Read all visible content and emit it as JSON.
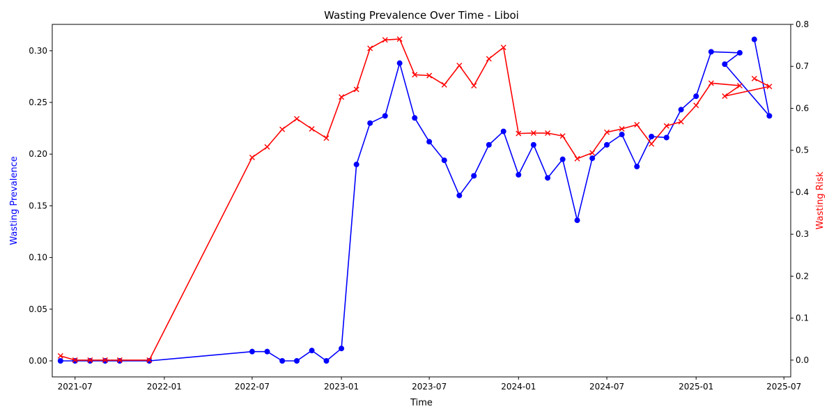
{
  "chart_data": {
    "type": "line",
    "title": "Wasting Prevalence Over Time - Liboi",
    "xlabel": "Time",
    "x_ticks": [
      "2021-07",
      "2022-01",
      "2022-07",
      "2023-01",
      "2023-07",
      "2024-01",
      "2024-07",
      "2025-01",
      "2025-07"
    ],
    "x_range": [
      "2021-05-15",
      "2025-07-15"
    ],
    "left_axis": {
      "label": "Wasting Prevalence",
      "color": "#0000ff",
      "range": [
        -0.0155,
        0.3255
      ],
      "ticks": [
        "0.00",
        "0.05",
        "0.10",
        "0.15",
        "0.20",
        "0.25",
        "0.30"
      ]
    },
    "right_axis": {
      "label": "Wasting Risk",
      "color": "#ff0000",
      "range": [
        -0.04,
        0.8
      ],
      "ticks": [
        "0.0",
        "0.1",
        "0.2",
        "0.3",
        "0.4",
        "0.5",
        "0.6",
        "0.7",
        "0.8"
      ]
    },
    "grid": false,
    "series": [
      {
        "axis": "left",
        "color": "#0000ff",
        "marker": "circle",
        "points": [
          [
            "2021-06-01",
            0.0
          ],
          [
            "2021-07-01",
            0.0
          ],
          [
            "2021-08-01",
            0.0
          ],
          [
            "2021-09-01",
            0.0
          ],
          [
            "2021-10-01",
            0.0
          ],
          [
            "2021-12-01",
            0.0
          ],
          [
            "2022-07-01",
            0.009
          ],
          [
            "2022-08-01",
            0.009
          ],
          [
            "2022-09-01",
            0.0
          ],
          [
            "2022-10-01",
            0.0
          ],
          [
            "2022-11-01",
            0.01
          ],
          [
            "2022-12-01",
            0.0
          ],
          [
            "2023-01-01",
            0.012
          ],
          [
            "2023-02-01",
            0.19
          ],
          [
            "2023-03-01",
            0.23
          ],
          [
            "2023-04-01",
            0.237
          ],
          [
            "2023-05-01",
            0.288
          ],
          [
            "2023-06-01",
            0.235
          ],
          [
            "2023-07-01",
            0.212
          ],
          [
            "2023-08-01",
            0.194
          ],
          [
            "2023-09-01",
            0.16
          ],
          [
            "2023-10-01",
            0.179
          ],
          [
            "2023-11-01",
            0.209
          ],
          [
            "2023-12-01",
            0.222
          ],
          [
            "2024-01-01",
            0.18
          ],
          [
            "2024-02-01",
            0.209
          ],
          [
            "2024-03-01",
            0.177
          ],
          [
            "2024-04-01",
            0.195
          ],
          [
            "2024-05-01",
            0.136
          ],
          [
            "2024-06-01",
            0.196
          ],
          [
            "2024-07-01",
            0.209
          ],
          [
            "2024-08-01",
            0.219
          ],
          [
            "2024-09-01",
            0.188
          ],
          [
            "2024-10-01",
            0.217
          ],
          [
            "2024-11-01",
            0.216
          ],
          [
            "2024-12-01",
            0.243
          ],
          [
            "2025-01-01",
            0.256
          ],
          [
            "2025-02-01",
            0.299
          ],
          [
            "2025-04-01",
            0.298
          ],
          [
            "2025-03-01",
            0.287
          ],
          [
            "2025-06-01",
            0.237
          ],
          [
            "2025-05-01",
            0.311
          ]
        ]
      },
      {
        "axis": "right",
        "color": "#ff0000",
        "marker": "x",
        "points": [
          [
            "2021-06-01",
            0.01
          ],
          [
            "2021-07-01",
            0.0
          ],
          [
            "2021-08-01",
            0.0
          ],
          [
            "2021-09-01",
            0.0
          ],
          [
            "2021-10-01",
            0.0
          ],
          [
            "2021-12-01",
            0.0
          ],
          [
            "2022-07-01",
            0.483
          ],
          [
            "2022-08-01",
            0.508
          ],
          [
            "2022-09-01",
            0.55
          ],
          [
            "2022-10-01",
            0.575
          ],
          [
            "2022-11-01",
            0.551
          ],
          [
            "2022-12-01",
            0.529
          ],
          [
            "2023-01-01",
            0.627
          ],
          [
            "2023-02-01",
            0.645
          ],
          [
            "2023-03-01",
            0.743
          ],
          [
            "2023-04-01",
            0.763
          ],
          [
            "2023-05-01",
            0.765
          ],
          [
            "2023-06-01",
            0.68
          ],
          [
            "2023-07-01",
            0.678
          ],
          [
            "2023-08-01",
            0.656
          ],
          [
            "2023-09-01",
            0.702
          ],
          [
            "2023-10-01",
            0.654
          ],
          [
            "2023-11-01",
            0.718
          ],
          [
            "2023-12-01",
            0.745
          ],
          [
            "2024-01-01",
            0.54
          ],
          [
            "2024-02-01",
            0.541
          ],
          [
            "2024-03-01",
            0.541
          ],
          [
            "2024-04-01",
            0.534
          ],
          [
            "2024-05-01",
            0.48
          ],
          [
            "2024-06-01",
            0.494
          ],
          [
            "2024-07-01",
            0.543
          ],
          [
            "2024-08-01",
            0.551
          ],
          [
            "2024-09-01",
            0.561
          ],
          [
            "2024-10-01",
            0.515
          ],
          [
            "2024-11-01",
            0.558
          ],
          [
            "2024-12-01",
            0.568
          ],
          [
            "2025-01-01",
            0.607
          ],
          [
            "2025-02-01",
            0.66
          ],
          [
            "2025-04-01",
            0.654
          ],
          [
            "2025-03-01",
            0.629
          ],
          [
            "2025-06-01",
            0.652
          ],
          [
            "2025-05-01",
            0.671
          ]
        ]
      }
    ]
  }
}
